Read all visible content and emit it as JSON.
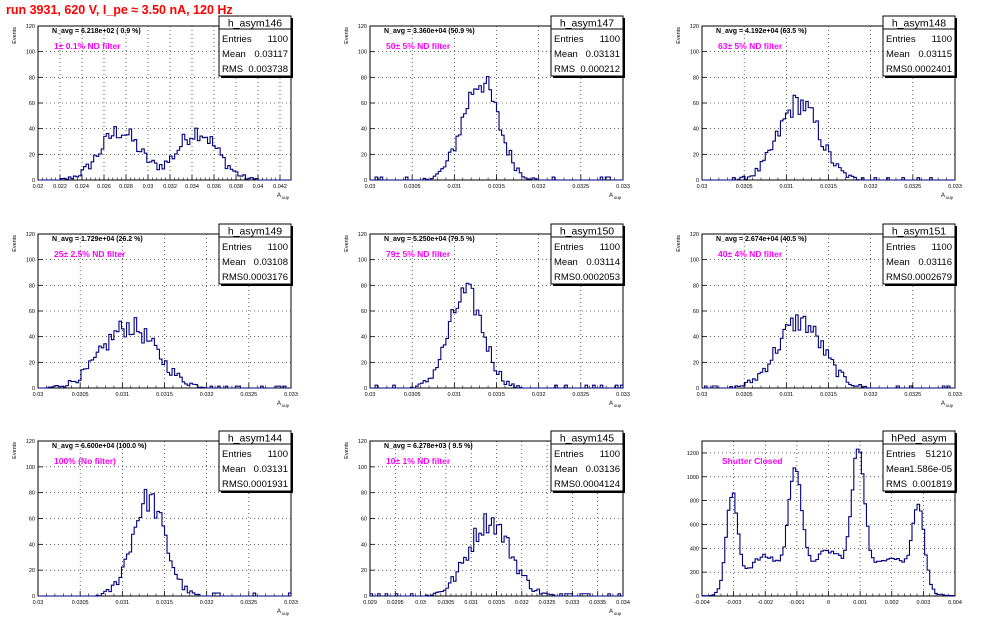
{
  "page": {
    "title": "run 3931,   620 V, I_pe ≈ 3.50 nA, 120 Hz"
  },
  "colors": {
    "histogram": "#000080",
    "annotation": "#ff00ff",
    "title": "#ff0000",
    "frame": "#000000"
  },
  "chart_data": [
    {
      "type": "bar",
      "name": "h_asym146",
      "nlabel": "N_avg = 6.218e+02 ( 0.9 %)",
      "filter": "1± 0.1% ND filter",
      "stats": {
        "Entries": "1100",
        "Mean": "0.03117",
        "RMS": "0.003738"
      },
      "ylabel": "Events",
      "xlabel": "A_uup",
      "xlim": [
        0.02,
        0.043
      ],
      "ylim": [
        0,
        120
      ],
      "yticks": [
        0,
        20,
        40,
        60,
        80,
        100,
        120
      ],
      "xticks": [
        0.02,
        0.022,
        0.024,
        0.026,
        0.028,
        0.03,
        0.032,
        0.034,
        0.036,
        0.038,
        0.04,
        0.042
      ],
      "xtick_labels": [
        "0.02",
        "0.022",
        "0.024",
        "0.026",
        "0.028",
        "0.03",
        "0.032",
        "0.034",
        "0.036",
        "0.038",
        "0.04",
        "0.042"
      ],
      "peaks": [
        [
          0.02745,
          0.0018,
          1.0
        ],
        [
          0.0345,
          0.0018,
          1.0
        ]
      ],
      "peak_height": 38
    },
    {
      "type": "bar",
      "name": "h_asym147",
      "nlabel": "N_avg = 3.360e+04 (50.9 %)",
      "filter": "50± 5% ND filter",
      "stats": {
        "Entries": "1100",
        "Mean": "0.03131",
        "RMS": "0.000212"
      },
      "ylabel": "Events",
      "xlabel": "A_uup",
      "xlim": [
        0.03,
        0.033
      ],
      "ylim": [
        0,
        120
      ],
      "yticks": [
        0,
        20,
        40,
        60,
        80,
        100,
        120
      ],
      "xticks": [
        0.03,
        0.0305,
        0.031,
        0.0315,
        0.032,
        0.0325,
        0.033
      ],
      "xtick_labels": [
        "0.03",
        "0.0305",
        "0.031",
        "0.0315",
        "0.032",
        "0.0325",
        "0.033"
      ],
      "peaks": [
        [
          0.03131,
          0.000212,
          1.0
        ]
      ],
      "peak_height": 77
    },
    {
      "type": "bar",
      "name": "h_asym148",
      "nlabel": "N_avg = 4.192e+04 (63.5 %)",
      "filter": "63± 5% ND filter",
      "stats": {
        "Entries": "1100",
        "Mean": "0.03115",
        "RMS": "0.0002401"
      },
      "ylabel": "Events",
      "xlabel": "A_uup",
      "xlim": [
        0.03,
        0.033
      ],
      "ylim": [
        0,
        120
      ],
      "yticks": [
        0,
        20,
        40,
        60,
        80,
        100,
        120
      ],
      "xticks": [
        0.03,
        0.0305,
        0.031,
        0.0315,
        0.032,
        0.0325,
        0.033
      ],
      "xtick_labels": [
        "0.03",
        "0.0305",
        "0.031",
        "0.0315",
        "0.032",
        "0.0325",
        "0.033"
      ],
      "peaks": [
        [
          0.03115,
          0.00024,
          1.0
        ]
      ],
      "peak_height": 60
    },
    {
      "type": "bar",
      "name": "h_asym149",
      "nlabel": "N_avg = 1.729e+04 (26.2 %)",
      "filter": "25± 2.5% ND filter",
      "stats": {
        "Entries": "1100",
        "Mean": "0.03108",
        "RMS": "0.0003176"
      },
      "ylabel": "Events",
      "xlabel": "A_uup",
      "xlim": [
        0.03,
        0.033
      ],
      "ylim": [
        0,
        120
      ],
      "yticks": [
        0,
        20,
        40,
        60,
        80,
        100,
        120
      ],
      "xticks": [
        0.03,
        0.0305,
        0.031,
        0.0315,
        0.032,
        0.0325,
        0.033
      ],
      "xtick_labels": [
        "0.03",
        "0.0305",
        "0.031",
        "0.0315",
        "0.032",
        "0.0325",
        "0.033"
      ],
      "peaks": [
        [
          0.03108,
          0.000318,
          1.0
        ]
      ],
      "peak_height": 48
    },
    {
      "type": "bar",
      "name": "h_asym150",
      "nlabel": "N_avg = 5.250e+04 (79.5 %)",
      "filter": "79± 5% ND filter",
      "stats": {
        "Entries": "1100",
        "Mean": "0.03114",
        "RMS": "0.0002053"
      },
      "ylabel": "Events",
      "xlabel": "A_uup",
      "xlim": [
        0.03,
        0.033
      ],
      "ylim": [
        0,
        120
      ],
      "yticks": [
        0,
        20,
        40,
        60,
        80,
        100,
        120
      ],
      "xticks": [
        0.03,
        0.0305,
        0.031,
        0.0315,
        0.032,
        0.0325,
        0.033
      ],
      "xtick_labels": [
        "0.03",
        "0.0305",
        "0.031",
        "0.0315",
        "0.032",
        "0.0325",
        "0.033"
      ],
      "peaks": [
        [
          0.03114,
          0.000205,
          1.0
        ]
      ],
      "peak_height": 73
    },
    {
      "type": "bar",
      "name": "h_asym151",
      "nlabel": "N_avg = 2.674e+04 (40.5 %)",
      "filter": "40± 4% ND filter",
      "stats": {
        "Entries": "1100",
        "Mean": "0.03116",
        "RMS": "0.0002679"
      },
      "ylabel": "Events",
      "xlabel": "A_uup",
      "xlim": [
        0.03,
        0.033
      ],
      "ylim": [
        0,
        120
      ],
      "yticks": [
        0,
        20,
        40,
        60,
        80,
        100,
        120
      ],
      "xticks": [
        0.03,
        0.0305,
        0.031,
        0.0315,
        0.032,
        0.0325,
        0.033
      ],
      "xtick_labels": [
        "0.03",
        "0.0305",
        "0.031",
        "0.0315",
        "0.032",
        "0.0325",
        "0.033"
      ],
      "peaks": [
        [
          0.03116,
          0.000268,
          1.0
        ]
      ],
      "peak_height": 52
    },
    {
      "type": "bar",
      "name": "h_asym144",
      "nlabel": "N_avg = 6.600e+04 (100.0 %)",
      "filter": "100% (No filter)",
      "stats": {
        "Entries": "1100",
        "Mean": "0.03131",
        "RMS": "0.0001931"
      },
      "ylabel": "Events",
      "xlabel": "A_uup",
      "xlim": [
        0.03,
        0.033
      ],
      "ylim": [
        0,
        120
      ],
      "yticks": [
        0,
        20,
        40,
        60,
        80,
        100,
        120
      ],
      "xticks": [
        0.03,
        0.0305,
        0.031,
        0.0315,
        0.032,
        0.0325,
        0.033
      ],
      "xtick_labels": [
        "0.03",
        "0.0305",
        "0.031",
        "0.0315",
        "0.032",
        "0.0325",
        "0.033"
      ],
      "peaks": [
        [
          0.03131,
          0.000193,
          1.0
        ]
      ],
      "peak_height": 75
    },
    {
      "type": "bar",
      "name": "h_asym145",
      "nlabel": "N_avg = 6.278e+03 ( 9.5 %)",
      "filter": "10± 1% ND filter",
      "stats": {
        "Entries": "1100",
        "Mean": "0.03136",
        "RMS": "0.0004124"
      },
      "ylabel": "Events",
      "xlabel": "A_uup",
      "xlim": [
        0.029,
        0.034
      ],
      "ylim": [
        0,
        120
      ],
      "yticks": [
        0,
        20,
        40,
        60,
        80,
        100,
        120
      ],
      "xticks": [
        0.029,
        0.0295,
        0.03,
        0.0305,
        0.031,
        0.0315,
        0.032,
        0.0325,
        0.033,
        0.0335,
        0.034
      ],
      "xtick_labels": [
        "0.029",
        "0.0295",
        "0.03",
        "0.0305",
        "0.031",
        "0.0315",
        "0.032",
        "0.0325",
        "0.033",
        "0.0335",
        "0.034"
      ],
      "peaks": [
        [
          0.03136,
          0.000412,
          1.0
        ]
      ],
      "peak_height": 58
    },
    {
      "type": "bar",
      "name": "hPed_asym",
      "nlabel": "",
      "filter": "Shutter Closed",
      "stats": {
        "Entries": "51210",
        "Mean": "-1.586e-05",
        "RMS": "0.001819"
      },
      "ylabel": "",
      "xlabel": "",
      "xlim": [
        -0.004,
        0.004
      ],
      "ylim": [
        0,
        1300
      ],
      "yticks": [
        0,
        200,
        400,
        600,
        800,
        1000,
        1200
      ],
      "xticks": [
        -0.004,
        -0.003,
        -0.002,
        -0.001,
        0,
        0.001,
        0.002,
        0.003,
        0.004
      ],
      "xtick_labels": [
        "-0.004",
        "-0.003",
        "-0.002",
        "-0.001",
        "0",
        "0.001",
        "0.002",
        "0.003",
        "0.004"
      ],
      "peaks": [
        [
          -0.00305,
          0.00018,
          900
        ],
        [
          -0.00105,
          0.0002,
          1080
        ],
        [
          0.00095,
          0.0002,
          1250
        ],
        [
          0.00285,
          0.00018,
          780
        ],
        [
          -0.002,
          0.0006,
          380
        ],
        [
          0,
          0.0006,
          430
        ],
        [
          0.002,
          0.0006,
          380
        ]
      ],
      "peak_height": 1250
    }
  ]
}
